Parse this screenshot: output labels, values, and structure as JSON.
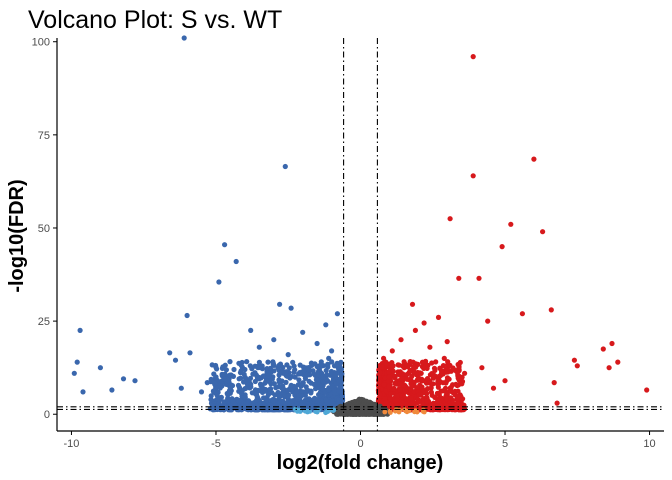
{
  "chart_data": {
    "type": "scatter",
    "title": "Volcano Plot: S vs. WT",
    "xlabel": "log2(fold change)",
    "ylabel": "-log10(FDR)",
    "xlim": [
      -10.5,
      10.5
    ],
    "ylim": [
      -4.5,
      101
    ],
    "x_ticks": [
      -10,
      -5,
      0,
      5,
      10
    ],
    "y_ticks": [
      0,
      25,
      50,
      75,
      100
    ],
    "x_tick_labels": [
      "-10",
      "-5",
      "0",
      "5",
      "10"
    ],
    "y_tick_labels": [
      "0",
      "25",
      "50",
      "75",
      "100"
    ],
    "grid": false,
    "legend": "none",
    "thresholds": {
      "log2fc_vertical": [
        -0.585,
        0.585
      ],
      "fdr_horizontal": [
        1.3,
        2.0
      ]
    },
    "colors": {
      "down": "#3a67ad",
      "up": "#d7191c",
      "ns": "#4d4d4d",
      "low_down": "#4fa8d6",
      "low_up": "#f08a3c",
      "threshold_line": "#000000"
    },
    "series": [
      {
        "class": "down",
        "color": "#3a67ad",
        "points": [
          [
            -6.1,
            101
          ],
          [
            -2.6,
            66.5
          ],
          [
            -4.7,
            45.5
          ],
          [
            -4.3,
            41
          ],
          [
            -4.9,
            35.5
          ],
          [
            -2.8,
            29.5
          ],
          [
            -2.4,
            28.5
          ],
          [
            -0.8,
            27
          ],
          [
            -6.0,
            26.5
          ],
          [
            -1.2,
            24
          ],
          [
            -3.8,
            22.5
          ],
          [
            -9.7,
            22.5
          ],
          [
            -6.6,
            16.5
          ],
          [
            -5.9,
            16.5
          ],
          [
            -6.4,
            14.5
          ],
          [
            -9.8,
            14
          ],
          [
            -9.0,
            12.5
          ],
          [
            -9.9,
            11
          ],
          [
            -9.6,
            6
          ],
          [
            -8.2,
            9.5
          ],
          [
            -7.8,
            9
          ],
          [
            -6.2,
            7
          ],
          [
            -5.3,
            8.5
          ],
          [
            -5.0,
            10
          ],
          [
            -4.0,
            12
          ],
          [
            -3.5,
            18
          ],
          [
            -3.0,
            20
          ],
          [
            -2.0,
            22
          ],
          [
            -1.5,
            19
          ],
          [
            -1.0,
            17
          ],
          [
            -2.5,
            16
          ],
          [
            -3.2,
            14
          ],
          [
            -4.5,
            7
          ],
          [
            -3.8,
            8
          ],
          [
            -2.8,
            9
          ],
          [
            -1.8,
            12
          ],
          [
            -1.3,
            10
          ],
          [
            -0.9,
            13
          ],
          [
            -2.2,
            6
          ],
          [
            -1.6,
            8
          ],
          [
            -3.6,
            10.5
          ],
          [
            -4.2,
            9.5
          ],
          [
            -2.6,
            11
          ],
          [
            -1.1,
            15
          ],
          [
            -5.5,
            6
          ],
          [
            -8.6,
            6.5
          ],
          [
            -0.7,
            9
          ]
        ]
      },
      {
        "class": "up",
        "color": "#d7191c",
        "points": [
          [
            3.9,
            96
          ],
          [
            6.0,
            68.5
          ],
          [
            3.9,
            64
          ],
          [
            3.1,
            52.5
          ],
          [
            5.2,
            51
          ],
          [
            6.3,
            49
          ],
          [
            4.9,
            45
          ],
          [
            3.4,
            36.5
          ],
          [
            4.1,
            36.5
          ],
          [
            6.6,
            28
          ],
          [
            1.8,
            29.5
          ],
          [
            2.7,
            26
          ],
          [
            2.2,
            24.5
          ],
          [
            4.4,
            25
          ],
          [
            5.6,
            27
          ],
          [
            8.4,
            17.5
          ],
          [
            8.7,
            19
          ],
          [
            7.4,
            14.5
          ],
          [
            7.5,
            13
          ],
          [
            8.6,
            12.5
          ],
          [
            8.9,
            14
          ],
          [
            9.9,
            6.5
          ],
          [
            6.7,
            8.5
          ],
          [
            5.0,
            9
          ],
          [
            4.2,
            12.5
          ],
          [
            3.6,
            11
          ],
          [
            2.9,
            15
          ],
          [
            2.4,
            18
          ],
          [
            1.4,
            20
          ],
          [
            1.1,
            17
          ],
          [
            3.3,
            8
          ],
          [
            4.6,
            7
          ],
          [
            1.6,
            13
          ],
          [
            2.1,
            11
          ],
          [
            1.0,
            10
          ],
          [
            6.8,
            3
          ],
          [
            0.8,
            15
          ],
          [
            1.9,
            22.5
          ],
          [
            3.0,
            19.5
          ]
        ]
      }
    ],
    "dense_clouds": [
      {
        "class": "down",
        "color": "#3a67ad",
        "count": 950,
        "x_range": [
          -5.2,
          -0.62
        ],
        "y_mode": 5
      },
      {
        "class": "up",
        "color": "#d7191c",
        "count": 700,
        "x_range": [
          0.62,
          3.6
        ],
        "y_mode": 5
      },
      {
        "class": "ns",
        "color": "#4d4d4d",
        "count": 500,
        "x_range": [
          -1.0,
          1.0
        ],
        "y_mode": 3
      }
    ]
  }
}
